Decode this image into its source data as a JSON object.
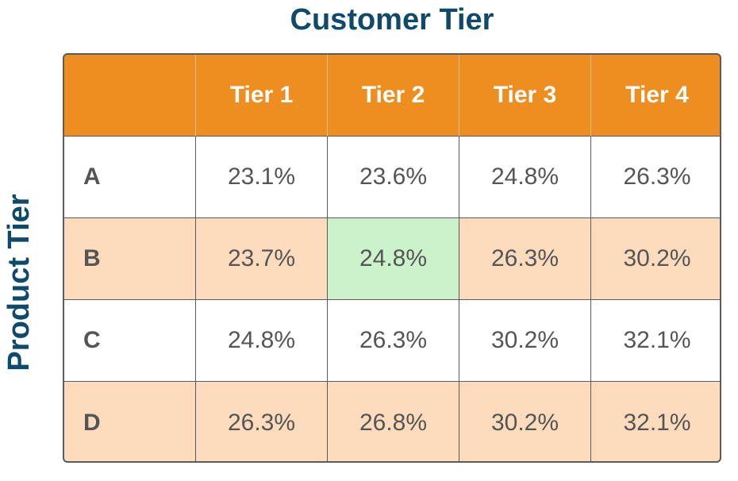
{
  "chart_data": {
    "type": "table",
    "title": "Customer Tier",
    "ylabel": "Product Tier",
    "columns": [
      "Tier 1",
      "Tier 2",
      "Tier 3",
      "Tier 4"
    ],
    "rows": [
      {
        "label": "A",
        "values": [
          "23.1%",
          "23.6%",
          "24.8%",
          "26.3%"
        ]
      },
      {
        "label": "B",
        "values": [
          "23.7%",
          "24.8%",
          "26.3%",
          "30.2%"
        ]
      },
      {
        "label": "C",
        "values": [
          "24.8%",
          "26.3%",
          "30.2%",
          "32.1%"
        ]
      },
      {
        "label": "D",
        "values": [
          "26.3%",
          "26.8%",
          "30.2%",
          "32.1%"
        ]
      }
    ],
    "highlight": {
      "row": 1,
      "col": 1,
      "color": "#ccf2cc"
    },
    "colors": {
      "header": "#ef8e20",
      "band": "#fcdcbc",
      "title": "#0f4a6b"
    }
  }
}
